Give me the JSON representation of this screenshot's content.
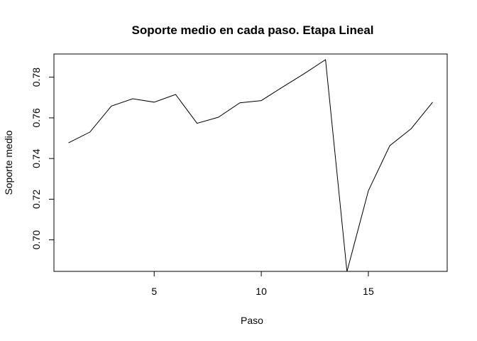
{
  "chart_data": {
    "type": "line",
    "title": "Soporte medio en cada paso. Etapa Lineal",
    "xlabel": "Paso",
    "ylabel": "Soporte medio",
    "xlim": [
      0.32,
      18.68
    ],
    "ylim": [
      0.6845,
      0.7914
    ],
    "x_ticks": [
      5,
      10,
      15
    ],
    "y_ticks": [
      0.7,
      0.72,
      0.74,
      0.76,
      0.78
    ],
    "y_tick_labels": [
      "0.70",
      "0.72",
      "0.74",
      "0.76",
      "0.78"
    ],
    "grid": false,
    "legend": "none",
    "series": [
      {
        "x": [
          1,
          2,
          3,
          4,
          5,
          6,
          7,
          8,
          9,
          10,
          11,
          12,
          13,
          14,
          15,
          16,
          17,
          18
        ],
        "values": [
          0.7477,
          0.753,
          0.7658,
          0.7694,
          0.7677,
          0.7715,
          0.7573,
          0.7603,
          0.7674,
          0.7685,
          0.7752,
          0.7817,
          0.7886,
          0.6844,
          0.7242,
          0.7463,
          0.7547,
          0.7677
        ],
        "color": "#000000"
      }
    ]
  }
}
